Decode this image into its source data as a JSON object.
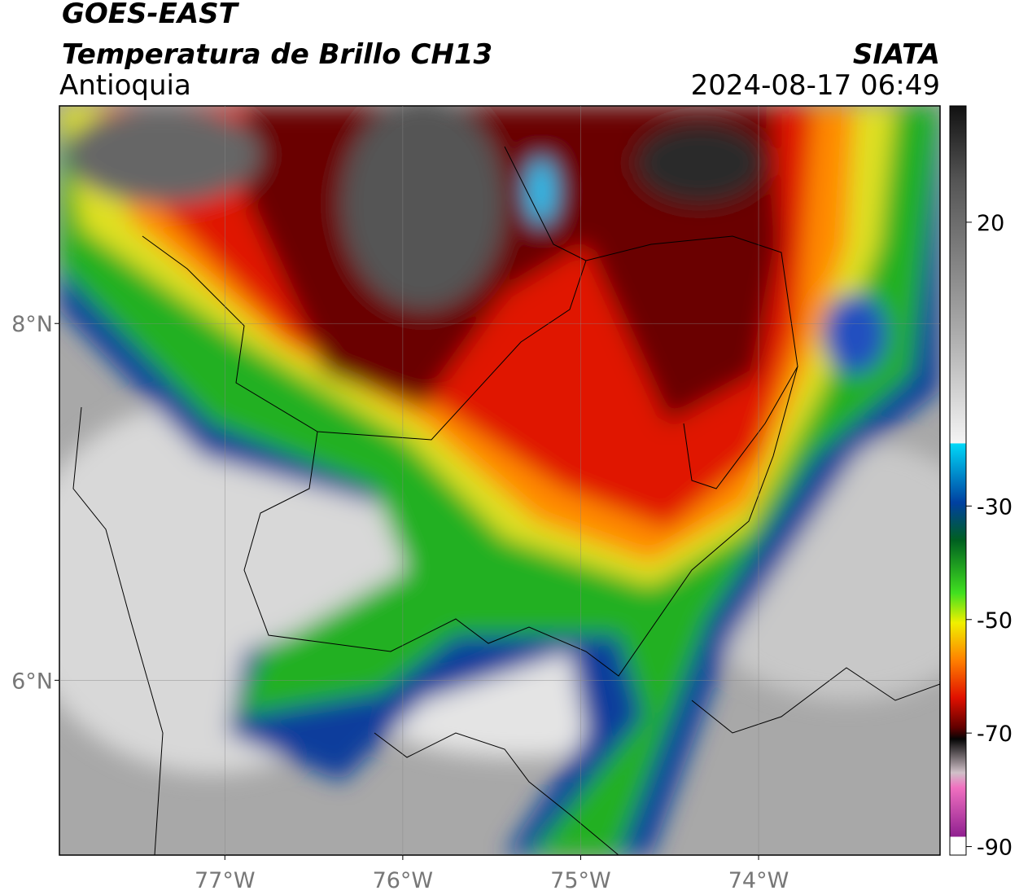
{
  "header": {
    "satellite": "GOES-EAST",
    "product": "Temperatura de Brillo CH13",
    "region": "Antioquia",
    "source": "SIATA",
    "datetime": "2024-08-17 06:49"
  },
  "map": {
    "xlim": [
      -77.93,
      -72.98
    ],
    "ylim": [
      5.02,
      9.22
    ],
    "xticks": [
      {
        "value": -77,
        "label": "77°W"
      },
      {
        "value": -76,
        "label": "76°W"
      },
      {
        "value": -75,
        "label": "75°W"
      },
      {
        "value": -74,
        "label": "74°W"
      }
    ],
    "yticks": [
      {
        "value": 8,
        "label": "8°N"
      },
      {
        "value": 6,
        "label": "6°N"
      }
    ],
    "grid": true
  },
  "colorbar": {
    "lim": [
      -91.5,
      40.5
    ],
    "ticks": [
      20,
      -30,
      -50,
      -70,
      -90
    ]
  }
}
